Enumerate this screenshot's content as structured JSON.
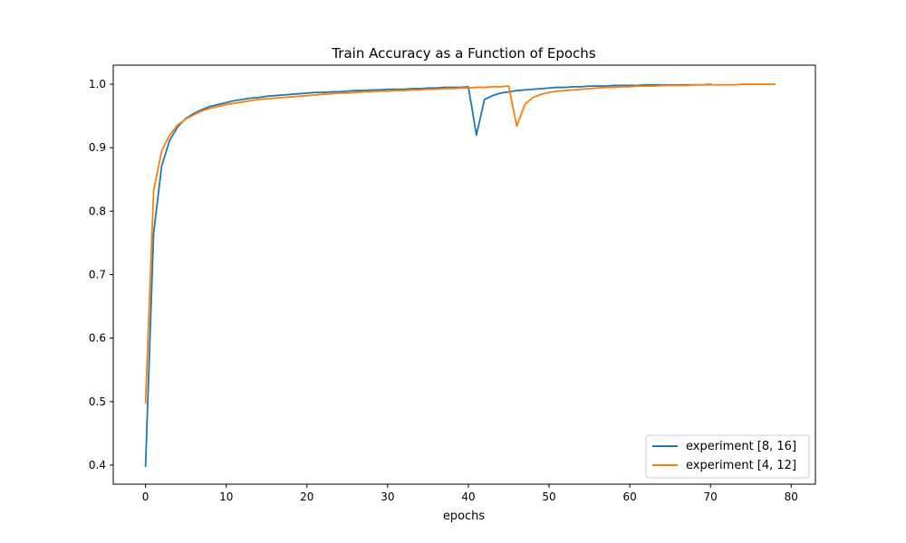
{
  "chart_data": {
    "type": "line",
    "title": "Train Accuracy as a Function of Epochs",
    "xlabel": "epochs",
    "ylabel": "",
    "xlim": [
      -4,
      83
    ],
    "ylim": [
      0.37,
      1.03
    ],
    "xticks": [
      0,
      10,
      20,
      30,
      40,
      50,
      60,
      70,
      80
    ],
    "yticks": [
      0.4,
      0.5,
      0.6,
      0.7,
      0.8,
      0.9,
      1.0
    ],
    "xtick_labels": [
      "0",
      "10",
      "20",
      "30",
      "40",
      "50",
      "60",
      "70",
      "80"
    ],
    "ytick_labels": [
      "0.4",
      "0.5",
      "0.6",
      "0.7",
      "0.8",
      "0.9",
      "1.0"
    ],
    "grid": false,
    "legend_position": "lower-right",
    "series": [
      {
        "name": "experiment [8, 16]",
        "color": "#1f77b4",
        "x": [
          0,
          1,
          2,
          3,
          4,
          5,
          6,
          7,
          8,
          9,
          10,
          11,
          12,
          13,
          14,
          15,
          16,
          17,
          18,
          19,
          20,
          21,
          22,
          23,
          24,
          25,
          26,
          27,
          28,
          29,
          30,
          31,
          32,
          33,
          34,
          35,
          36,
          37,
          38,
          39,
          40,
          41,
          42,
          43,
          44,
          45,
          46,
          47,
          48,
          49,
          50,
          51,
          52,
          53,
          54,
          55,
          56,
          57,
          58,
          59,
          60,
          61,
          62,
          63,
          64,
          65,
          66,
          67,
          68,
          69,
          70
        ],
        "y": [
          0.398,
          0.765,
          0.871,
          0.912,
          0.933,
          0.946,
          0.954,
          0.96,
          0.965,
          0.968,
          0.971,
          0.974,
          0.976,
          0.978,
          0.979,
          0.981,
          0.982,
          0.983,
          0.984,
          0.985,
          0.986,
          0.987,
          0.987,
          0.988,
          0.988,
          0.989,
          0.99,
          0.99,
          0.991,
          0.991,
          0.992,
          0.992,
          0.992,
          0.993,
          0.993,
          0.994,
          0.994,
          0.995,
          0.995,
          0.995,
          0.996,
          0.92,
          0.976,
          0.982,
          0.986,
          0.988,
          0.99,
          0.991,
          0.992,
          0.993,
          0.994,
          0.995,
          0.995,
          0.996,
          0.996,
          0.997,
          0.997,
          0.997,
          0.998,
          0.998,
          0.998,
          0.998,
          0.999,
          0.999,
          0.999,
          0.999,
          0.999,
          0.999,
          0.999,
          0.999,
          1.0
        ]
      },
      {
        "name": "experiment [4, 12]",
        "color": "#ff7f0e",
        "x": [
          0,
          1,
          2,
          3,
          4,
          5,
          6,
          7,
          8,
          9,
          10,
          11,
          12,
          13,
          14,
          15,
          16,
          17,
          18,
          19,
          20,
          21,
          22,
          23,
          24,
          25,
          26,
          27,
          28,
          29,
          30,
          31,
          32,
          33,
          34,
          35,
          36,
          37,
          38,
          39,
          40,
          41,
          42,
          43,
          44,
          45,
          46,
          47,
          48,
          49,
          50,
          51,
          52,
          53,
          54,
          55,
          56,
          57,
          58,
          59,
          60,
          61,
          62,
          63,
          64,
          65,
          66,
          67,
          68,
          69,
          70,
          71,
          72,
          73,
          74,
          75,
          76,
          77,
          78
        ],
        "y": [
          0.498,
          0.832,
          0.895,
          0.92,
          0.936,
          0.945,
          0.952,
          0.958,
          0.962,
          0.965,
          0.968,
          0.97,
          0.972,
          0.974,
          0.976,
          0.977,
          0.978,
          0.979,
          0.98,
          0.981,
          0.982,
          0.983,
          0.984,
          0.985,
          0.986,
          0.986,
          0.987,
          0.988,
          0.988,
          0.989,
          0.989,
          0.99,
          0.99,
          0.991,
          0.991,
          0.992,
          0.992,
          0.993,
          0.993,
          0.994,
          0.994,
          0.995,
          0.995,
          0.996,
          0.996,
          0.997,
          0.934,
          0.968,
          0.979,
          0.984,
          0.987,
          0.989,
          0.99,
          0.991,
          0.992,
          0.993,
          0.994,
          0.995,
          0.995,
          0.996,
          0.996,
          0.997,
          0.997,
          0.997,
          0.998,
          0.998,
          0.998,
          0.998,
          0.999,
          0.999,
          0.999,
          0.999,
          0.999,
          0.999,
          1.0,
          1.0,
          1.0,
          1.0,
          1.0
        ]
      }
    ]
  }
}
